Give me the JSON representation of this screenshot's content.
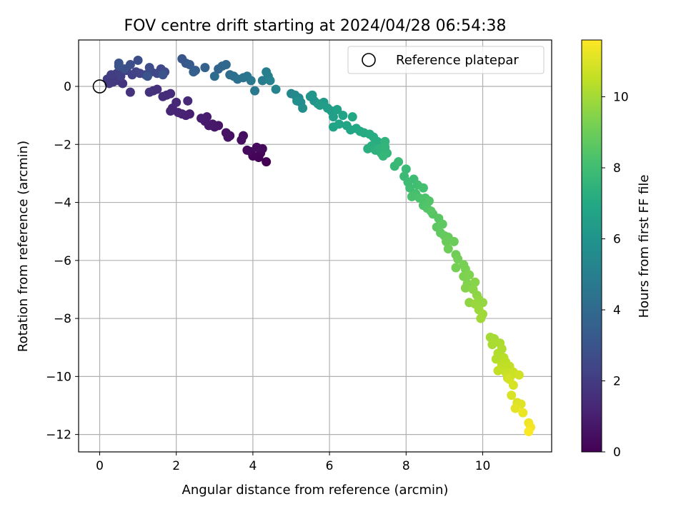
{
  "chart_data": {
    "type": "scatter",
    "title": "FOV centre drift starting at 2024/04/28 06:54:38",
    "xlabel": "Angular distance from reference (arcmin)",
    "ylabel": "Rotation from reference (arcmin)",
    "xlim": [
      -0.55,
      11.8
    ],
    "ylim": [
      -12.6,
      1.6
    ],
    "xticks": [
      "0",
      "2",
      "4",
      "6",
      "8",
      "10"
    ],
    "xtick_values": [
      0,
      2,
      4,
      6,
      8,
      10
    ],
    "yticks": [
      "0",
      "−2",
      "−4",
      "−6",
      "−8",
      "−10",
      "−12"
    ],
    "ytick_values": [
      0,
      -2,
      -4,
      -6,
      -8,
      -10,
      -12
    ],
    "grid": true,
    "legend": {
      "position": "top-right",
      "label": "Reference platepar"
    },
    "reference_point": {
      "x": 0,
      "y": 0
    },
    "colorbar": {
      "label": "Hours from first FF file",
      "colormap": "viridis",
      "range": [
        0,
        11.6
      ],
      "ticks": [
        "0",
        "2",
        "4",
        "6",
        "8",
        "10"
      ],
      "tick_values": [
        0,
        2,
        4,
        6,
        8,
        10
      ]
    },
    "points": [
      [
        4.35,
        -2.6,
        0.0
      ],
      [
        4.15,
        -2.45,
        0.05
      ],
      [
        4.0,
        -2.4,
        0.1
      ],
      [
        4.2,
        -2.3,
        0.15
      ],
      [
        3.95,
        -2.25,
        0.2
      ],
      [
        4.25,
        -2.15,
        0.25
      ],
      [
        3.85,
        -2.2,
        0.3
      ],
      [
        4.1,
        -2.1,
        0.35
      ],
      [
        3.75,
        -1.7,
        0.4
      ],
      [
        3.7,
        -1.85,
        0.45
      ],
      [
        3.4,
        -1.7,
        0.5
      ],
      [
        3.35,
        -1.75,
        0.55
      ],
      [
        3.3,
        -1.6,
        0.6
      ],
      [
        3.1,
        -1.35,
        0.65
      ],
      [
        3.0,
        -1.4,
        0.7
      ],
      [
        2.95,
        -1.3,
        0.75
      ],
      [
        2.85,
        -1.35,
        0.8
      ],
      [
        2.75,
        -1.2,
        0.85
      ],
      [
        2.8,
        -1.05,
        0.9
      ],
      [
        2.65,
        -1.1,
        0.95
      ],
      [
        2.35,
        -0.95,
        1.0
      ],
      [
        2.25,
        -1.0,
        1.05
      ],
      [
        2.15,
        -0.95,
        1.1
      ],
      [
        2.05,
        -0.9,
        1.15
      ],
      [
        1.9,
        -0.75,
        1.2
      ],
      [
        1.85,
        -0.85,
        1.25
      ],
      [
        2.0,
        -0.55,
        1.3
      ],
      [
        2.3,
        -0.5,
        1.35
      ],
      [
        1.75,
        -0.3,
        1.4
      ],
      [
        1.85,
        -0.25,
        1.45
      ],
      [
        1.65,
        -0.35,
        1.5
      ],
      [
        1.5,
        -0.1,
        1.55
      ],
      [
        1.4,
        -0.15,
        1.6
      ],
      [
        1.3,
        -0.2,
        1.65
      ],
      [
        0.8,
        -0.2,
        1.7
      ],
      [
        0.6,
        0.1,
        1.75
      ],
      [
        0.5,
        0.2,
        1.8
      ],
      [
        0.4,
        0.3,
        1.85
      ],
      [
        0.35,
        0.15,
        1.9
      ],
      [
        0.25,
        0.1,
        1.95
      ],
      [
        0.2,
        0.25,
        2.0
      ],
      [
        0.3,
        0.4,
        2.05
      ],
      [
        0.45,
        0.45,
        2.1
      ],
      [
        0.55,
        0.35,
        2.15
      ],
      [
        0.7,
        0.55,
        2.2
      ],
      [
        0.85,
        0.4,
        2.25
      ],
      [
        0.95,
        0.5,
        2.3
      ],
      [
        1.05,
        0.45,
        2.35
      ],
      [
        1.2,
        0.4,
        2.4
      ],
      [
        1.35,
        0.5,
        2.45
      ],
      [
        1.5,
        0.45,
        2.5
      ],
      [
        1.6,
        0.6,
        2.55
      ],
      [
        1.7,
        0.5,
        2.6
      ],
      [
        1.3,
        0.65,
        2.65
      ],
      [
        1.0,
        0.9,
        2.7
      ],
      [
        0.8,
        0.75,
        2.75
      ],
      [
        0.65,
        0.6,
        2.8
      ],
      [
        0.5,
        0.7,
        2.85
      ],
      [
        0.5,
        0.8,
        2.9
      ],
      [
        1.65,
        0.4,
        2.95
      ],
      [
        1.25,
        0.35,
        3.0
      ],
      [
        2.15,
        0.95,
        3.1
      ],
      [
        2.25,
        0.8,
        3.2
      ],
      [
        2.35,
        0.75,
        3.3
      ],
      [
        2.5,
        0.55,
        3.4
      ],
      [
        2.45,
        0.5,
        3.5
      ],
      [
        2.75,
        0.65,
        3.6
      ],
      [
        3.1,
        0.6,
        3.7
      ],
      [
        3.2,
        0.7,
        3.8
      ],
      [
        3.3,
        0.75,
        3.9
      ],
      [
        3.0,
        0.35,
        4.0
      ],
      [
        3.4,
        0.4,
        4.1
      ],
      [
        3.5,
        0.35,
        4.2
      ],
      [
        3.6,
        0.25,
        4.3
      ],
      [
        3.75,
        0.3,
        4.4
      ],
      [
        3.85,
        0.35,
        4.5
      ],
      [
        3.95,
        0.2,
        4.6
      ],
      [
        4.05,
        -0.15,
        4.7
      ],
      [
        4.25,
        0.2,
        4.8
      ],
      [
        4.4,
        0.35,
        4.9
      ],
      [
        4.35,
        0.5,
        5.0
      ],
      [
        4.45,
        0.2,
        5.1
      ],
      [
        4.6,
        -0.1,
        5.2
      ],
      [
        5.0,
        -0.25,
        5.3
      ],
      [
        5.1,
        -0.3,
        5.4
      ],
      [
        5.2,
        -0.4,
        5.5
      ],
      [
        5.25,
        -0.55,
        5.6
      ],
      [
        5.15,
        -0.5,
        5.7
      ],
      [
        5.3,
        -0.75,
        5.8
      ],
      [
        5.5,
        -0.35,
        5.9
      ],
      [
        5.6,
        -0.5,
        6.0
      ],
      [
        5.55,
        -0.3,
        6.1
      ],
      [
        5.7,
        -0.6,
        6.2
      ],
      [
        5.85,
        -0.55,
        6.3
      ],
      [
        5.75,
        -0.65,
        6.4
      ],
      [
        5.95,
        -0.75,
        6.45
      ],
      [
        6.05,
        -0.85,
        6.5
      ],
      [
        6.1,
        -1.05,
        6.55
      ],
      [
        6.2,
        -0.8,
        6.6
      ],
      [
        6.35,
        -1.0,
        6.65
      ],
      [
        6.1,
        -1.4,
        6.7
      ],
      [
        6.25,
        -1.3,
        6.75
      ],
      [
        6.45,
        -1.35,
        6.8
      ],
      [
        6.55,
        -1.5,
        6.85
      ],
      [
        6.6,
        -1.05,
        6.9
      ],
      [
        6.7,
        -1.45,
        6.95
      ],
      [
        6.8,
        -1.55,
        7.0
      ],
      [
        6.9,
        -1.6,
        7.05
      ],
      [
        7.05,
        -1.65,
        7.1
      ],
      [
        7.15,
        -1.75,
        7.15
      ],
      [
        7.25,
        -1.9,
        7.2
      ],
      [
        7.1,
        -2.05,
        7.25
      ],
      [
        7.0,
        -2.15,
        7.3
      ],
      [
        7.2,
        -2.2,
        7.35
      ],
      [
        7.35,
        -2.3,
        7.4
      ],
      [
        7.3,
        -2.15,
        7.45
      ],
      [
        7.45,
        -1.9,
        7.5
      ],
      [
        7.45,
        -2.1,
        7.55
      ],
      [
        7.5,
        -2.3,
        7.6
      ],
      [
        7.4,
        -2.4,
        7.65
      ],
      [
        7.7,
        -2.75,
        7.7
      ],
      [
        7.8,
        -2.6,
        7.75
      ],
      [
        8.0,
        -2.85,
        7.8
      ],
      [
        7.95,
        -3.1,
        7.85
      ],
      [
        8.05,
        -3.3,
        7.9
      ],
      [
        8.2,
        -3.2,
        7.95
      ],
      [
        8.1,
        -3.5,
        8.0
      ],
      [
        8.3,
        -3.4,
        8.05
      ],
      [
        8.45,
        -3.5,
        8.1
      ],
      [
        8.25,
        -3.7,
        8.15
      ],
      [
        8.15,
        -3.8,
        8.2
      ],
      [
        8.35,
        -3.85,
        8.25
      ],
      [
        8.5,
        -3.85,
        8.3
      ],
      [
        8.45,
        -4.1,
        8.35
      ],
      [
        8.6,
        -3.95,
        8.4
      ],
      [
        8.55,
        -4.2,
        8.45
      ],
      [
        8.7,
        -4.4,
        8.5
      ],
      [
        8.65,
        -4.3,
        8.55
      ],
      [
        8.85,
        -4.55,
        8.6
      ],
      [
        8.8,
        -4.85,
        8.65
      ],
      [
        8.95,
        -4.75,
        8.7
      ],
      [
        8.9,
        -5.05,
        8.75
      ],
      [
        9.0,
        -5.15,
        8.8
      ],
      [
        9.1,
        -5.2,
        8.85
      ],
      [
        9.05,
        -5.35,
        8.9
      ],
      [
        9.25,
        -5.35,
        8.95
      ],
      [
        9.1,
        -5.6,
        9.0
      ],
      [
        9.3,
        -5.8,
        9.05
      ],
      [
        9.35,
        -5.95,
        9.1
      ],
      [
        9.3,
        -6.25,
        9.15
      ],
      [
        9.5,
        -6.15,
        9.2
      ],
      [
        9.55,
        -6.3,
        9.25
      ],
      [
        9.5,
        -6.55,
        9.3
      ],
      [
        9.65,
        -6.5,
        9.35
      ],
      [
        9.6,
        -6.8,
        9.4
      ],
      [
        9.55,
        -6.95,
        9.45
      ],
      [
        9.8,
        -6.75,
        9.5
      ],
      [
        9.75,
        -7.0,
        9.55
      ],
      [
        9.85,
        -7.2,
        9.6
      ],
      [
        9.65,
        -7.45,
        9.65
      ],
      [
        9.9,
        -7.35,
        9.7
      ],
      [
        10.0,
        -7.45,
        9.75
      ],
      [
        9.8,
        -7.5,
        9.8
      ],
      [
        9.9,
        -7.7,
        9.85
      ],
      [
        10.0,
        -7.85,
        9.9
      ],
      [
        9.95,
        -8.0,
        9.95
      ],
      [
        10.2,
        -8.65,
        10.0
      ],
      [
        10.3,
        -8.7,
        10.05
      ],
      [
        10.25,
        -8.9,
        10.1
      ],
      [
        10.45,
        -8.85,
        10.15
      ],
      [
        10.5,
        -9.05,
        10.2
      ],
      [
        10.4,
        -9.2,
        10.25
      ],
      [
        10.35,
        -9.4,
        10.3
      ],
      [
        10.55,
        -9.35,
        10.35
      ],
      [
        10.6,
        -9.5,
        10.4
      ],
      [
        10.5,
        -9.6,
        10.45
      ],
      [
        10.7,
        -9.65,
        10.5
      ],
      [
        10.4,
        -9.8,
        10.55
      ],
      [
        10.6,
        -9.85,
        10.6
      ],
      [
        10.75,
        -9.95,
        10.65
      ],
      [
        10.8,
        -9.85,
        10.7
      ],
      [
        10.65,
        -10.05,
        10.75
      ],
      [
        10.95,
        -9.95,
        10.8
      ],
      [
        10.7,
        -10.1,
        10.85
      ],
      [
        10.8,
        -10.3,
        10.9
      ],
      [
        10.75,
        -10.65,
        10.95
      ],
      [
        10.9,
        -10.9,
        11.0
      ],
      [
        11.0,
        -10.95,
        11.05
      ],
      [
        10.85,
        -11.1,
        11.15
      ],
      [
        11.05,
        -11.25,
        11.25
      ],
      [
        11.2,
        -11.6,
        11.35
      ],
      [
        11.25,
        -11.75,
        11.45
      ],
      [
        11.2,
        -11.9,
        11.55
      ]
    ]
  }
}
